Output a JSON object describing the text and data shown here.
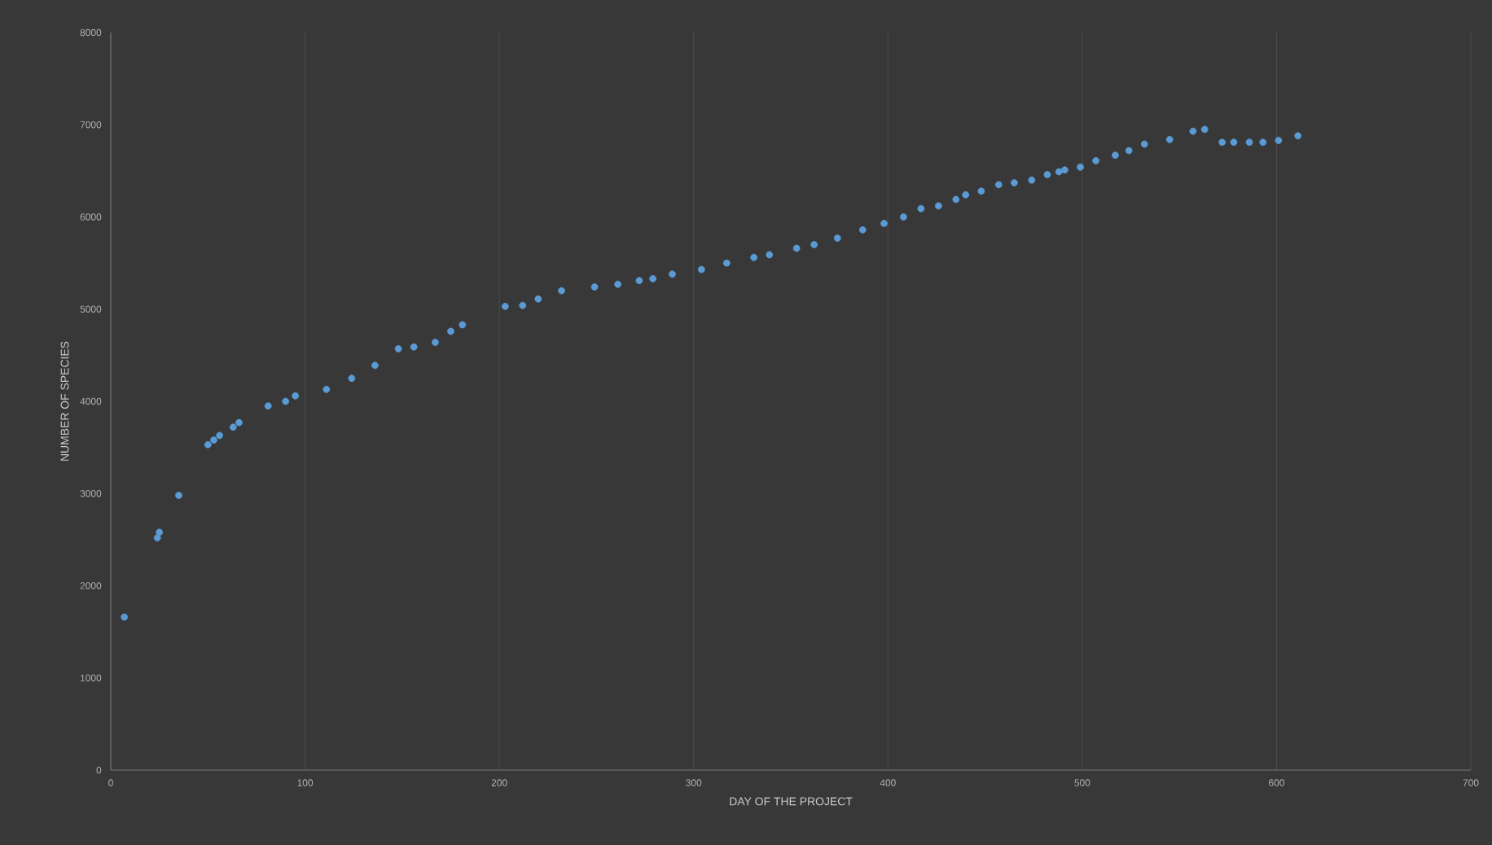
{
  "chart_data": {
    "type": "scatter",
    "xlabel": "DAY OF THE PROJECT",
    "ylabel": "NUMBER OF SPECIES",
    "x": [
      7,
      24,
      25,
      35,
      50,
      53,
      56,
      63,
      66,
      81,
      90,
      95,
      111,
      124,
      136,
      148,
      156,
      167,
      175,
      181,
      203,
      212,
      220,
      232,
      249,
      261,
      272,
      279,
      289,
      304,
      317,
      331,
      339,
      353,
      362,
      374,
      387,
      398,
      408,
      417,
      426,
      435,
      440,
      448,
      457,
      465,
      474,
      482,
      488,
      491,
      499,
      507,
      517,
      524,
      532,
      545,
      557,
      563,
      572,
      578,
      586,
      593,
      601,
      611
    ],
    "values": [
      1660,
      2520,
      2580,
      2980,
      3530,
      3580,
      3630,
      3720,
      3770,
      3950,
      4000,
      4060,
      4130,
      4250,
      4390,
      4570,
      4590,
      4640,
      4760,
      4830,
      5030,
      5040,
      5110,
      5200,
      5240,
      5270,
      5310,
      5330,
      5380,
      5430,
      5500,
      5560,
      5590,
      5660,
      5700,
      5770,
      5860,
      5930,
      6000,
      6090,
      6120,
      6190,
      6240,
      6280,
      6350,
      6370,
      6400,
      6460,
      6490,
      6510,
      6540,
      6610,
      6670,
      6720,
      6790,
      6840,
      6930,
      6950,
      6810,
      6810,
      6810,
      6810,
      6830,
      6880
    ],
    "color": "#5b9bd5",
    "marker": "circle",
    "grid": "x",
    "xlim": [
      0,
      700
    ],
    "xticks": [
      0,
      100,
      200,
      300,
      400,
      500,
      600,
      700
    ],
    "ylim": [
      0,
      8000
    ],
    "yticks": [
      0,
      1000,
      2000,
      3000,
      4000,
      5000,
      6000,
      7000,
      8000
    ]
  }
}
